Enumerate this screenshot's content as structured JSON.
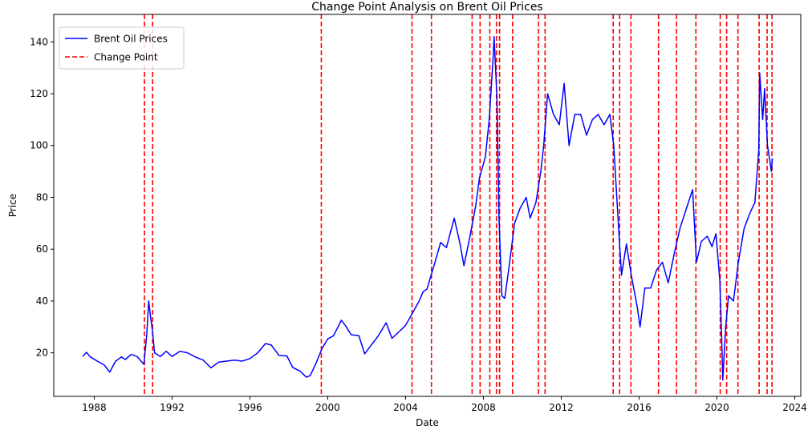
{
  "chart_data": {
    "type": "line",
    "title": "Change Point Analysis on Brent Oil Prices",
    "xlabel": "Date",
    "ylabel": "Price",
    "xlim": [
      1985.92,
      2024.31
    ],
    "ylim": [
      3.2,
      150.6
    ],
    "x_ticks": [
      1988,
      1992,
      1996,
      2000,
      2004,
      2008,
      2012,
      2016,
      2020,
      2024
    ],
    "y_ticks": [
      20,
      40,
      60,
      80,
      100,
      120,
      140
    ],
    "grid": false,
    "legend_position": "top-left",
    "series": [
      {
        "name": "Brent Oil Prices",
        "color": "#0000ff",
        "style": "solid",
        "points": [
          [
            1987.4,
            18.6
          ],
          [
            1987.6,
            20.2
          ],
          [
            1987.8,
            18.4
          ],
          [
            1988.0,
            17.5
          ],
          [
            1988.2,
            16.6
          ],
          [
            1988.5,
            15.4
          ],
          [
            1988.8,
            12.6
          ],
          [
            1989.1,
            16.8
          ],
          [
            1989.4,
            18.4
          ],
          [
            1989.6,
            17.4
          ],
          [
            1989.9,
            19.4
          ],
          [
            1990.2,
            18.6
          ],
          [
            1990.45,
            16.4
          ],
          [
            1990.55,
            15.6
          ],
          [
            1990.7,
            27.0
          ],
          [
            1990.8,
            40.0
          ],
          [
            1990.9,
            33.5
          ],
          [
            1991.0,
            28.0
          ],
          [
            1991.1,
            20.0
          ],
          [
            1991.4,
            18.6
          ],
          [
            1991.7,
            20.6
          ],
          [
            1992.0,
            18.6
          ],
          [
            1992.4,
            20.6
          ],
          [
            1992.8,
            20.0
          ],
          [
            1993.2,
            18.4
          ],
          [
            1993.6,
            17.2
          ],
          [
            1994.0,
            14.2
          ],
          [
            1994.4,
            16.4
          ],
          [
            1994.8,
            16.8
          ],
          [
            1995.2,
            17.2
          ],
          [
            1995.6,
            16.8
          ],
          [
            1996.0,
            17.8
          ],
          [
            1996.4,
            20.0
          ],
          [
            1996.8,
            23.6
          ],
          [
            1997.1,
            23.0
          ],
          [
            1997.5,
            19.0
          ],
          [
            1997.9,
            18.8
          ],
          [
            1998.2,
            14.4
          ],
          [
            1998.6,
            12.8
          ],
          [
            1998.9,
            10.6
          ],
          [
            1999.1,
            11.2
          ],
          [
            1999.4,
            16.0
          ],
          [
            1999.7,
            21.6
          ],
          [
            2000.0,
            25.4
          ],
          [
            2000.3,
            26.6
          ],
          [
            2000.7,
            32.6
          ],
          [
            2000.9,
            30.6
          ],
          [
            2001.2,
            27.0
          ],
          [
            2001.6,
            26.6
          ],
          [
            2001.9,
            19.6
          ],
          [
            2002.2,
            22.6
          ],
          [
            2002.6,
            26.6
          ],
          [
            2003.0,
            31.6
          ],
          [
            2003.3,
            25.6
          ],
          [
            2003.7,
            28.4
          ],
          [
            2004.0,
            30.6
          ],
          [
            2004.4,
            36.0
          ],
          [
            2004.7,
            40.0
          ],
          [
            2004.9,
            43.6
          ],
          [
            2005.1,
            44.6
          ],
          [
            2005.5,
            54.6
          ],
          [
            2005.8,
            62.6
          ],
          [
            2006.1,
            60.6
          ],
          [
            2006.5,
            72.0
          ],
          [
            2006.8,
            62.0
          ],
          [
            2007.0,
            53.6
          ],
          [
            2007.3,
            64.6
          ],
          [
            2007.6,
            76.6
          ],
          [
            2007.8,
            87.6
          ],
          [
            2008.1,
            95.6
          ],
          [
            2008.3,
            110.0
          ],
          [
            2008.5,
            134.0
          ],
          [
            2008.55,
            142.0
          ],
          [
            2008.7,
            118.0
          ],
          [
            2008.8,
            72.0
          ],
          [
            2008.95,
            42.0
          ],
          [
            2009.1,
            41.0
          ],
          [
            2009.35,
            55.0
          ],
          [
            2009.6,
            70.0
          ],
          [
            2009.9,
            76.0
          ],
          [
            2010.2,
            80.0
          ],
          [
            2010.4,
            72.0
          ],
          [
            2010.7,
            78.0
          ],
          [
            2010.95,
            90.0
          ],
          [
            2011.1,
            100.0
          ],
          [
            2011.3,
            120.0
          ],
          [
            2011.6,
            112.0
          ],
          [
            2011.9,
            108.0
          ],
          [
            2012.15,
            124.0
          ],
          [
            2012.4,
            100.0
          ],
          [
            2012.7,
            112.0
          ],
          [
            2013.0,
            112.0
          ],
          [
            2013.3,
            104.0
          ],
          [
            2013.6,
            110.0
          ],
          [
            2013.9,
            112.0
          ],
          [
            2014.2,
            108.0
          ],
          [
            2014.5,
            112.0
          ],
          [
            2014.7,
            100.0
          ],
          [
            2014.95,
            68.0
          ],
          [
            2015.1,
            50.0
          ],
          [
            2015.35,
            62.0
          ],
          [
            2015.6,
            50.0
          ],
          [
            2015.9,
            38.0
          ],
          [
            2016.05,
            30.0
          ],
          [
            2016.3,
            45.0
          ],
          [
            2016.6,
            45.0
          ],
          [
            2016.9,
            52.0
          ],
          [
            2017.2,
            55.0
          ],
          [
            2017.5,
            47.0
          ],
          [
            2017.8,
            58.0
          ],
          [
            2018.1,
            68.0
          ],
          [
            2018.4,
            75.0
          ],
          [
            2018.75,
            83.0
          ],
          [
            2018.95,
            55.0
          ],
          [
            2019.2,
            63.0
          ],
          [
            2019.5,
            65.0
          ],
          [
            2019.75,
            61.0
          ],
          [
            2019.95,
            66.0
          ],
          [
            2020.15,
            48.0
          ],
          [
            2020.25,
            25.0
          ],
          [
            2020.3,
            9.5
          ],
          [
            2020.45,
            30.0
          ],
          [
            2020.6,
            42.0
          ],
          [
            2020.85,
            40.0
          ],
          [
            2021.1,
            55.0
          ],
          [
            2021.4,
            68.0
          ],
          [
            2021.7,
            74.0
          ],
          [
            2021.95,
            78.0
          ],
          [
            2022.15,
            98.0
          ],
          [
            2022.2,
            128.0
          ],
          [
            2022.35,
            110.0
          ],
          [
            2022.45,
            122.0
          ],
          [
            2022.6,
            100.0
          ],
          [
            2022.8,
            90.0
          ],
          [
            2022.85,
            95.0
          ]
        ]
      },
      {
        "name": "Change Point",
        "color": "#ff0000",
        "style": "dashed",
        "x": [
          1990.58,
          1991.0,
          1999.67,
          2004.33,
          2005.33,
          2007.42,
          2007.83,
          2008.33,
          2008.67,
          2008.83,
          2009.5,
          2010.83,
          2011.17,
          2014.67,
          2015.0,
          2015.58,
          2017.0,
          2017.92,
          2018.92,
          2020.17,
          2020.5,
          2021.08,
          2022.17,
          2022.58,
          2022.83
        ]
      }
    ]
  }
}
